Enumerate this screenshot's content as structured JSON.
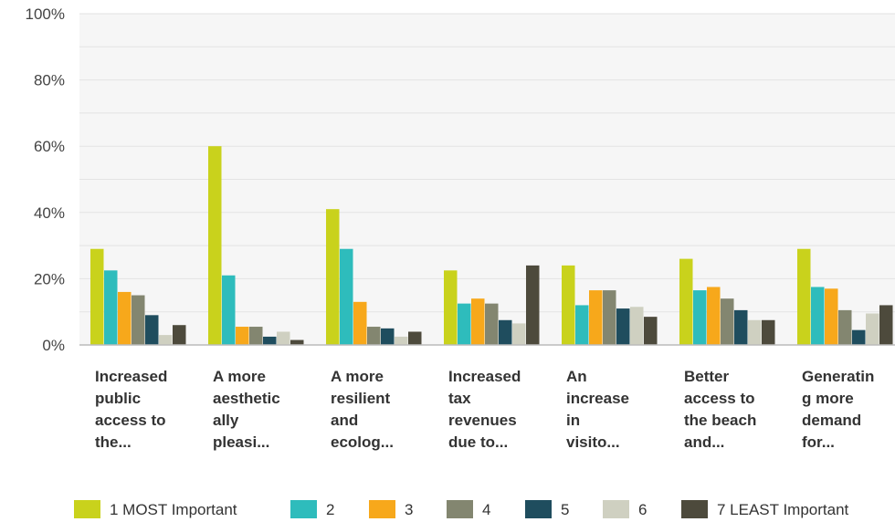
{
  "chart_data": {
    "type": "bar",
    "ylim": [
      0,
      100
    ],
    "yticks": [
      "0%",
      "20%",
      "40%",
      "60%",
      "80%",
      "100%"
    ],
    "grid": true,
    "legend_position": "bottom",
    "categories": [
      [
        "Increased",
        "public",
        "access to",
        "the..."
      ],
      [
        "A more",
        "aesthetic",
        "ally",
        "pleasi..."
      ],
      [
        "A more",
        "resilient",
        "and",
        "ecolog..."
      ],
      [
        "Increased",
        "tax",
        "revenues",
        "due to..."
      ],
      [
        "An",
        "increase",
        "in",
        "visito..."
      ],
      [
        "Better",
        "access to",
        "the beach",
        "and..."
      ],
      [
        "Generatin",
        "g more",
        "demand",
        "for..."
      ]
    ],
    "series": [
      {
        "name": "1 MOST Important",
        "color": "#c9d21c",
        "values": [
          29,
          60,
          41,
          22.5,
          24,
          26,
          29
        ]
      },
      {
        "name": "2",
        "color": "#2ebcbc",
        "values": [
          22.5,
          21,
          29,
          12.5,
          12,
          16.5,
          17.5
        ]
      },
      {
        "name": "3",
        "color": "#f7a81b",
        "values": [
          16,
          5.5,
          13,
          14,
          16.5,
          17.5,
          17
        ]
      },
      {
        "name": "4",
        "color": "#838670",
        "values": [
          15,
          5.5,
          5.5,
          12.5,
          16.5,
          14,
          10.5
        ]
      },
      {
        "name": "5",
        "color": "#1f4d5e",
        "values": [
          9,
          2.5,
          5,
          7.5,
          11,
          10.5,
          4.5
        ]
      },
      {
        "name": "6",
        "color": "#cfd0c1",
        "values": [
          3,
          4,
          2.5,
          6.5,
          11.5,
          7.5,
          9.5
        ]
      },
      {
        "name": "7 LEAST Important",
        "color": "#4d4a3c",
        "values": [
          6,
          1.5,
          4,
          24,
          8.5,
          7.5,
          12
        ]
      }
    ]
  }
}
